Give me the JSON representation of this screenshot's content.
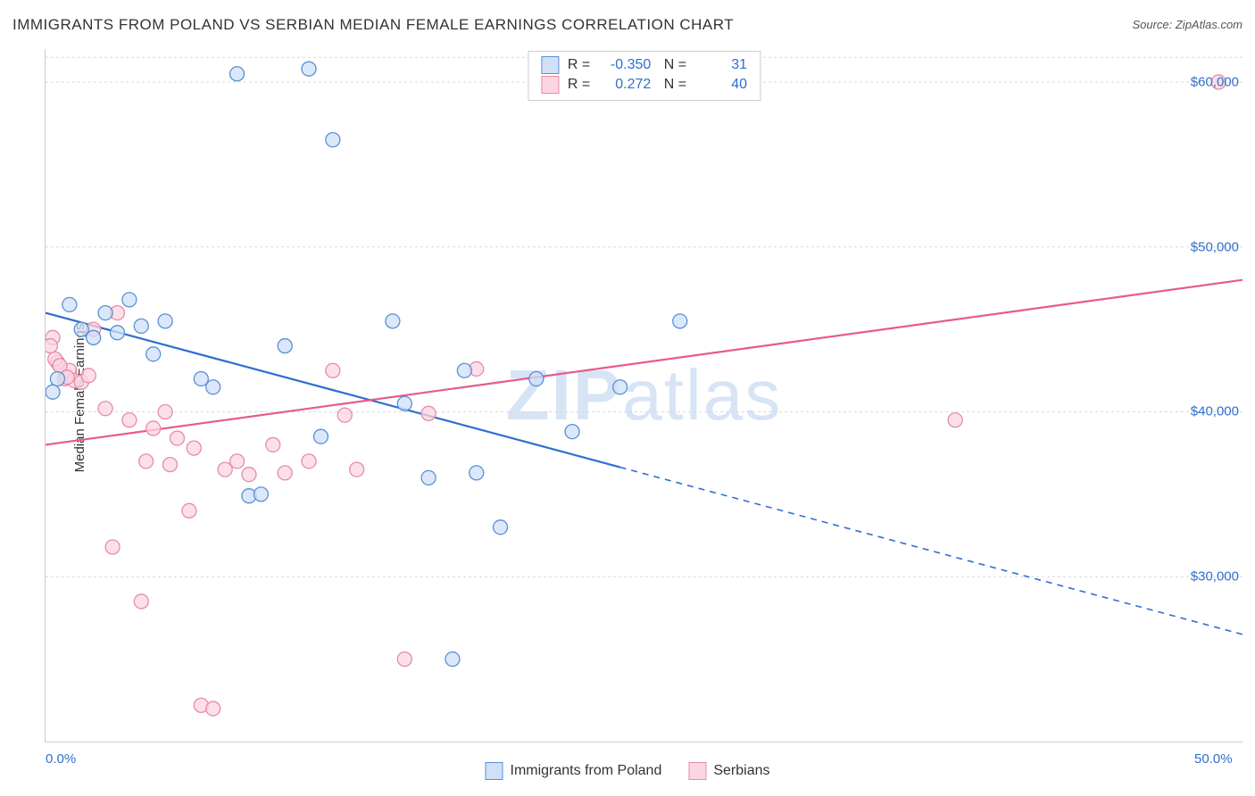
{
  "title": "IMMIGRANTS FROM POLAND VS SERBIAN MEDIAN FEMALE EARNINGS CORRELATION CHART",
  "source": "Source: ZipAtlas.com",
  "y_axis_label": "Median Female Earnings",
  "watermark_bold": "ZIP",
  "watermark_light": "atlas",
  "watermark_color": "#d7e4f5",
  "chart": {
    "type": "scatter",
    "xlim": [
      0,
      50
    ],
    "ylim": [
      20000,
      62000
    ],
    "x_ticks": [
      {
        "v": 0,
        "label": "0.0%",
        "color": "#2f6fd0"
      },
      {
        "v": 50,
        "label": "50.0%",
        "color": "#2f6fd0"
      }
    ],
    "y_ticks": [
      {
        "v": 30000,
        "label": "$30,000",
        "color": "#2f6fd0"
      },
      {
        "v": 40000,
        "label": "$40,000",
        "color": "#2f6fd0"
      },
      {
        "v": 50000,
        "label": "$50,000",
        "color": "#2f6fd0"
      },
      {
        "v": 60000,
        "label": "$60,000",
        "color": "#2f6fd0"
      }
    ],
    "grid_color": "#d9d9d9",
    "grid_dash": "3 3",
    "background": "#ffffff",
    "marker_radius": 8,
    "marker_stroke_width": 1.3,
    "series": [
      {
        "name": "Immigrants from Poland",
        "key": "poland",
        "fill": "#cfe0f7",
        "stroke": "#5a8fd6",
        "line_color": "#2f6fd0",
        "R": "-0.350",
        "N": "31",
        "trend": {
          "x1": 0,
          "y1": 46000,
          "x2": 50,
          "y2": 26500,
          "solid_until_x": 24
        },
        "points": [
          [
            0.5,
            42000
          ],
          [
            1.0,
            46500
          ],
          [
            1.5,
            45000
          ],
          [
            2.0,
            44500
          ],
          [
            2.5,
            46000
          ],
          [
            3.0,
            44800
          ],
          [
            3.5,
            46800
          ],
          [
            4.0,
            45200
          ],
          [
            4.5,
            43500
          ],
          [
            5.0,
            45500
          ],
          [
            6.5,
            42000
          ],
          [
            7.0,
            41500
          ],
          [
            8.0,
            60500
          ],
          [
            8.5,
            34900
          ],
          [
            9.0,
            35000
          ],
          [
            10.0,
            44000
          ],
          [
            11.0,
            60800
          ],
          [
            11.5,
            38500
          ],
          [
            12.0,
            56500
          ],
          [
            14.5,
            45500
          ],
          [
            15.0,
            40500
          ],
          [
            16.0,
            36000
          ],
          [
            17.0,
            25000
          ],
          [
            17.5,
            42500
          ],
          [
            18.0,
            36300
          ],
          [
            19.0,
            33000
          ],
          [
            20.5,
            42000
          ],
          [
            22.0,
            38800
          ],
          [
            24.0,
            41500
          ],
          [
            26.5,
            45500
          ],
          [
            0.3,
            41200
          ]
        ]
      },
      {
        "name": "Serbians",
        "key": "serbians",
        "fill": "#fbd6e1",
        "stroke": "#e88aa6",
        "line_color": "#e75a8d",
        "R": "0.272",
        "N": "40",
        "trend": {
          "x1": 0,
          "y1": 38000,
          "x2": 50,
          "y2": 48000,
          "solid_until_x": 50
        },
        "points": [
          [
            0.3,
            44500
          ],
          [
            0.5,
            43000
          ],
          [
            0.8,
            42000
          ],
          [
            1.0,
            42500
          ],
          [
            1.2,
            41900
          ],
          [
            1.5,
            41800
          ],
          [
            1.8,
            42200
          ],
          [
            2.0,
            45000
          ],
          [
            2.5,
            40200
          ],
          [
            2.8,
            31800
          ],
          [
            3.0,
            46000
          ],
          [
            3.5,
            39500
          ],
          [
            4.0,
            28500
          ],
          [
            4.2,
            37000
          ],
          [
            4.5,
            39000
          ],
          [
            5.0,
            40000
          ],
          [
            5.2,
            36800
          ],
          [
            5.5,
            38400
          ],
          [
            6.0,
            34000
          ],
          [
            6.2,
            37800
          ],
          [
            6.5,
            22200
          ],
          [
            7.0,
            22000
          ],
          [
            7.5,
            36500
          ],
          [
            8.0,
            37000
          ],
          [
            8.5,
            36200
          ],
          [
            9.5,
            38000
          ],
          [
            10.0,
            36300
          ],
          [
            11.0,
            37000
          ],
          [
            12.0,
            42500
          ],
          [
            12.5,
            39800
          ],
          [
            13.0,
            36500
          ],
          [
            15.0,
            25000
          ],
          [
            16.0,
            39900
          ],
          [
            18.0,
            42600
          ],
          [
            38.0,
            39500
          ],
          [
            49.0,
            60000
          ],
          [
            0.2,
            44000
          ],
          [
            0.4,
            43200
          ],
          [
            0.6,
            42800
          ],
          [
            0.9,
            42100
          ]
        ]
      }
    ]
  },
  "legend": {
    "items": [
      {
        "label": "Immigrants from Poland",
        "fill": "#cfe0f7",
        "stroke": "#5a8fd6"
      },
      {
        "label": "Serbians",
        "fill": "#fbd6e1",
        "stroke": "#e88aa6"
      }
    ]
  },
  "stats_value_color": "#2f6fd0"
}
